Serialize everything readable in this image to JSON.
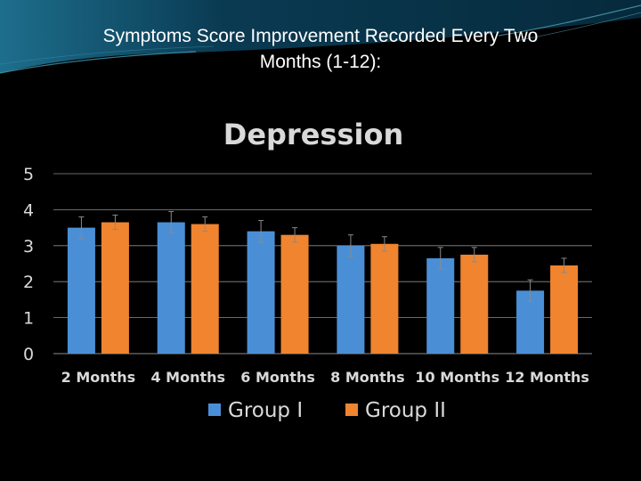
{
  "slide": {
    "title_line1": "Symptoms Score Improvement Recorded Every Two",
    "title_line2": "Months (1-12):"
  },
  "colors": {
    "background": "#000000",
    "banner_dark": "#062a3c",
    "banner_light": "#1d6e8c",
    "series": [
      "#4a8fd6",
      "#f0842f"
    ],
    "gridline": "#8c8c8c",
    "text": "#d9d9d9"
  },
  "chart_data": {
    "type": "bar",
    "title": "Depression",
    "categories": [
      "2 Months",
      "4 Months",
      "6 Months",
      "8 Months",
      "10 Months",
      "12 Months"
    ],
    "series": [
      {
        "name": "Group I",
        "values": [
          3.5,
          3.65,
          3.4,
          3.0,
          2.65,
          1.75
        ],
        "errors": [
          0.3,
          0.3,
          0.3,
          0.3,
          0.3,
          0.3
        ]
      },
      {
        "name": "Group II",
        "values": [
          3.65,
          3.6,
          3.3,
          3.05,
          2.75,
          2.45
        ],
        "errors": [
          0.2,
          0.2,
          0.2,
          0.2,
          0.2,
          0.2
        ]
      }
    ],
    "ylim": [
      0,
      5
    ],
    "yticks": [
      0,
      1,
      2,
      3,
      4,
      5
    ],
    "xlabel": "",
    "ylabel": "",
    "grid": true,
    "legend": "bottom"
  }
}
